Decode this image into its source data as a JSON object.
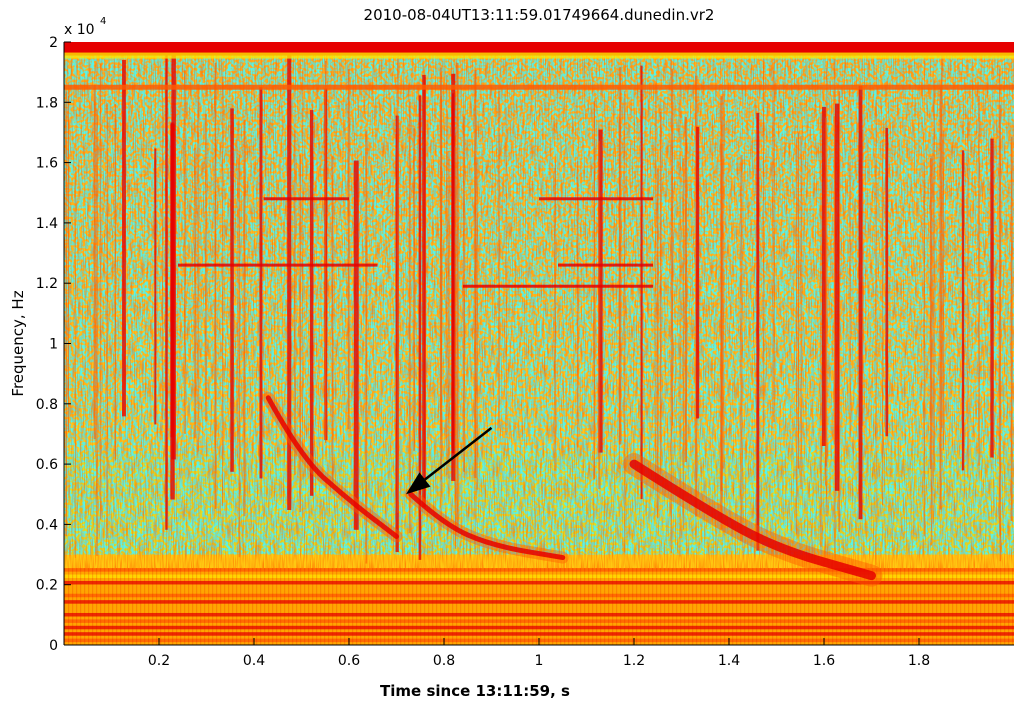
{
  "chart_data": {
    "type": "heatmap",
    "title": "2010-08-04UT13:11:59.01749664.dunedin.vr2",
    "xlabel": "Time since 13:11:59, s",
    "ylabel": "Frequency, Hz",
    "y_exponent_label": "x 10",
    "y_exponent_power": "4",
    "xlim": [
      0,
      2
    ],
    "ylim": [
      0,
      20000
    ],
    "x_ticks": [
      0.2,
      0.4,
      0.6,
      0.8,
      1,
      1.2,
      1.4,
      1.6,
      1.8
    ],
    "x_tick_labels": [
      "0.2",
      "0.4",
      "0.6",
      "0.8",
      "1",
      "1.2",
      "1.4",
      "1.6",
      "1.8"
    ],
    "y_ticks": [
      0,
      2000,
      4000,
      6000,
      8000,
      10000,
      12000,
      14000,
      16000,
      18000,
      20000
    ],
    "y_tick_labels": [
      "0",
      "0.2",
      "0.4",
      "0.6",
      "0.8",
      "1",
      "1.2",
      "1.4",
      "1.6",
      "1.8",
      "2"
    ],
    "colormap": [
      "#1ee6c8",
      "#a8f040",
      "#ffe600",
      "#ffa500",
      "#ff5a00",
      "#e60000"
    ],
    "background_color": "#ffcc1a",
    "tone_lines": [
      {
        "freq": 18500,
        "t_start": 0,
        "t_end": 2
      },
      {
        "freq": 12600,
        "t_start": 0.24,
        "t_end": 0.66
      },
      {
        "freq": 14800,
        "t_start": 0.42,
        "t_end": 0.6
      },
      {
        "freq": 11900,
        "t_start": 0.84,
        "t_end": 1.24
      },
      {
        "freq": 12600,
        "t_start": 1.04,
        "t_end": 1.24
      },
      {
        "freq": 14800,
        "t_start": 1,
        "t_end": 1.24
      }
    ],
    "whistlers": [
      {
        "points": [
          [
            0.43,
            8200
          ],
          [
            0.5,
            6200
          ],
          [
            0.6,
            4800
          ],
          [
            0.7,
            3600
          ]
        ]
      },
      {
        "points": [
          [
            0.73,
            5000
          ],
          [
            0.8,
            4000
          ],
          [
            0.9,
            3300
          ],
          [
            1.05,
            2900
          ]
        ]
      },
      {
        "points": [
          [
            1.2,
            6000
          ],
          [
            1.35,
            4500
          ],
          [
            1.5,
            3200
          ],
          [
            1.7,
            2300
          ]
        ]
      }
    ],
    "annotations": [
      {
        "type": "arrow",
        "from": [
          0.9,
          7200
        ],
        "to": [
          0.72,
          5000
        ]
      }
    ]
  }
}
